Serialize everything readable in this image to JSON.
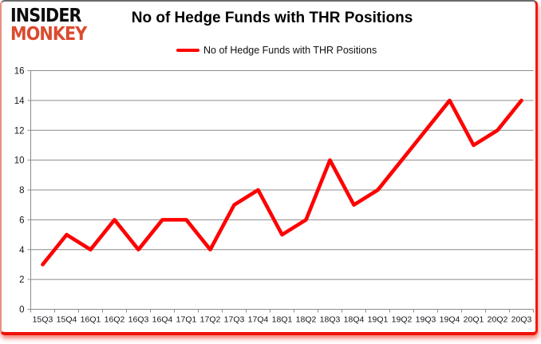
{
  "logo": {
    "line1": "INSIDER",
    "line2": "MONKEY",
    "color_line1": "#0c0c0c",
    "color_line2": "#dc4a2f"
  },
  "header": {
    "title": "No of Hedge Funds with THR Positions"
  },
  "legend": {
    "label": "No of Hedge Funds with THR Positions",
    "swatch_color": "#fe0000"
  },
  "chart_data": {
    "type": "line",
    "title": "No of Hedge Funds with THR Positions",
    "categories": [
      "15Q3",
      "15Q4",
      "16Q1",
      "16Q2",
      "16Q3",
      "16Q4",
      "17Q1",
      "17Q2",
      "17Q3",
      "17Q4",
      "18Q1",
      "18Q2",
      "18Q3",
      "18Q4",
      "19Q1",
      "19Q2",
      "19Q3",
      "19Q4",
      "20Q1",
      "20Q2",
      "20Q3"
    ],
    "series": [
      {
        "name": "No of Hedge Funds with THR Positions",
        "color": "#fe0000",
        "values": [
          3,
          5,
          4,
          6,
          4,
          6,
          6,
          4,
          7,
          8,
          5,
          6,
          10,
          7,
          8,
          10,
          12,
          14,
          11,
          12,
          14
        ]
      }
    ],
    "xlabel": "",
    "ylabel": "",
    "ylim": [
      0,
      16
    ],
    "y_ticks": [
      0,
      2,
      4,
      6,
      8,
      10,
      12,
      14,
      16
    ],
    "grid": true,
    "legend_position": "top-center",
    "gridline_color": "#8c8c8c",
    "label_color": "#16161f"
  }
}
